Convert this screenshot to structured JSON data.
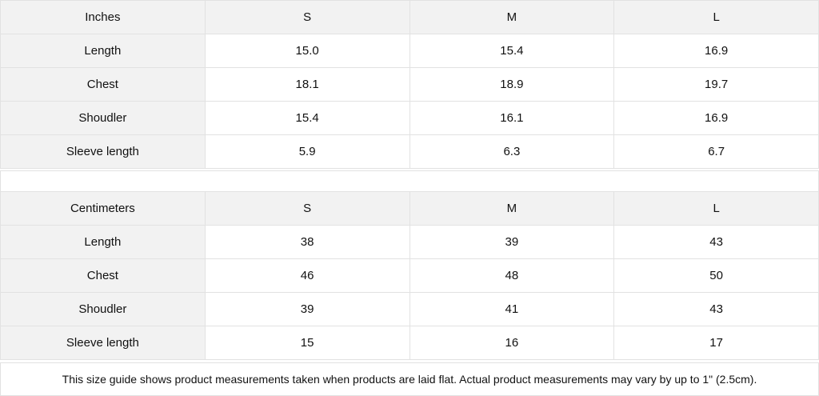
{
  "inches": {
    "header": [
      "Inches",
      "S",
      "M",
      "L"
    ],
    "rows": [
      [
        "Length",
        "15.0",
        "15.4",
        "16.9"
      ],
      [
        "Chest",
        "18.1",
        "18.9",
        "19.7"
      ],
      [
        "Shoudler",
        "15.4",
        "16.1",
        "16.9"
      ],
      [
        "Sleeve length",
        "5.9",
        "6.3",
        "6.7"
      ]
    ]
  },
  "centimeters": {
    "header": [
      "Centimeters",
      "S",
      "M",
      "L"
    ],
    "rows": [
      [
        "Length",
        "38",
        "39",
        "43"
      ],
      [
        "Chest",
        "46",
        "48",
        "50"
      ],
      [
        "Shoudler",
        "39",
        "41",
        "43"
      ],
      [
        "Sleeve length",
        "15",
        "16",
        "17"
      ]
    ]
  },
  "footnote": "This size guide shows product measurements taken when products are laid flat.  Actual product measurements may vary by up to 1\" (2.5cm)."
}
